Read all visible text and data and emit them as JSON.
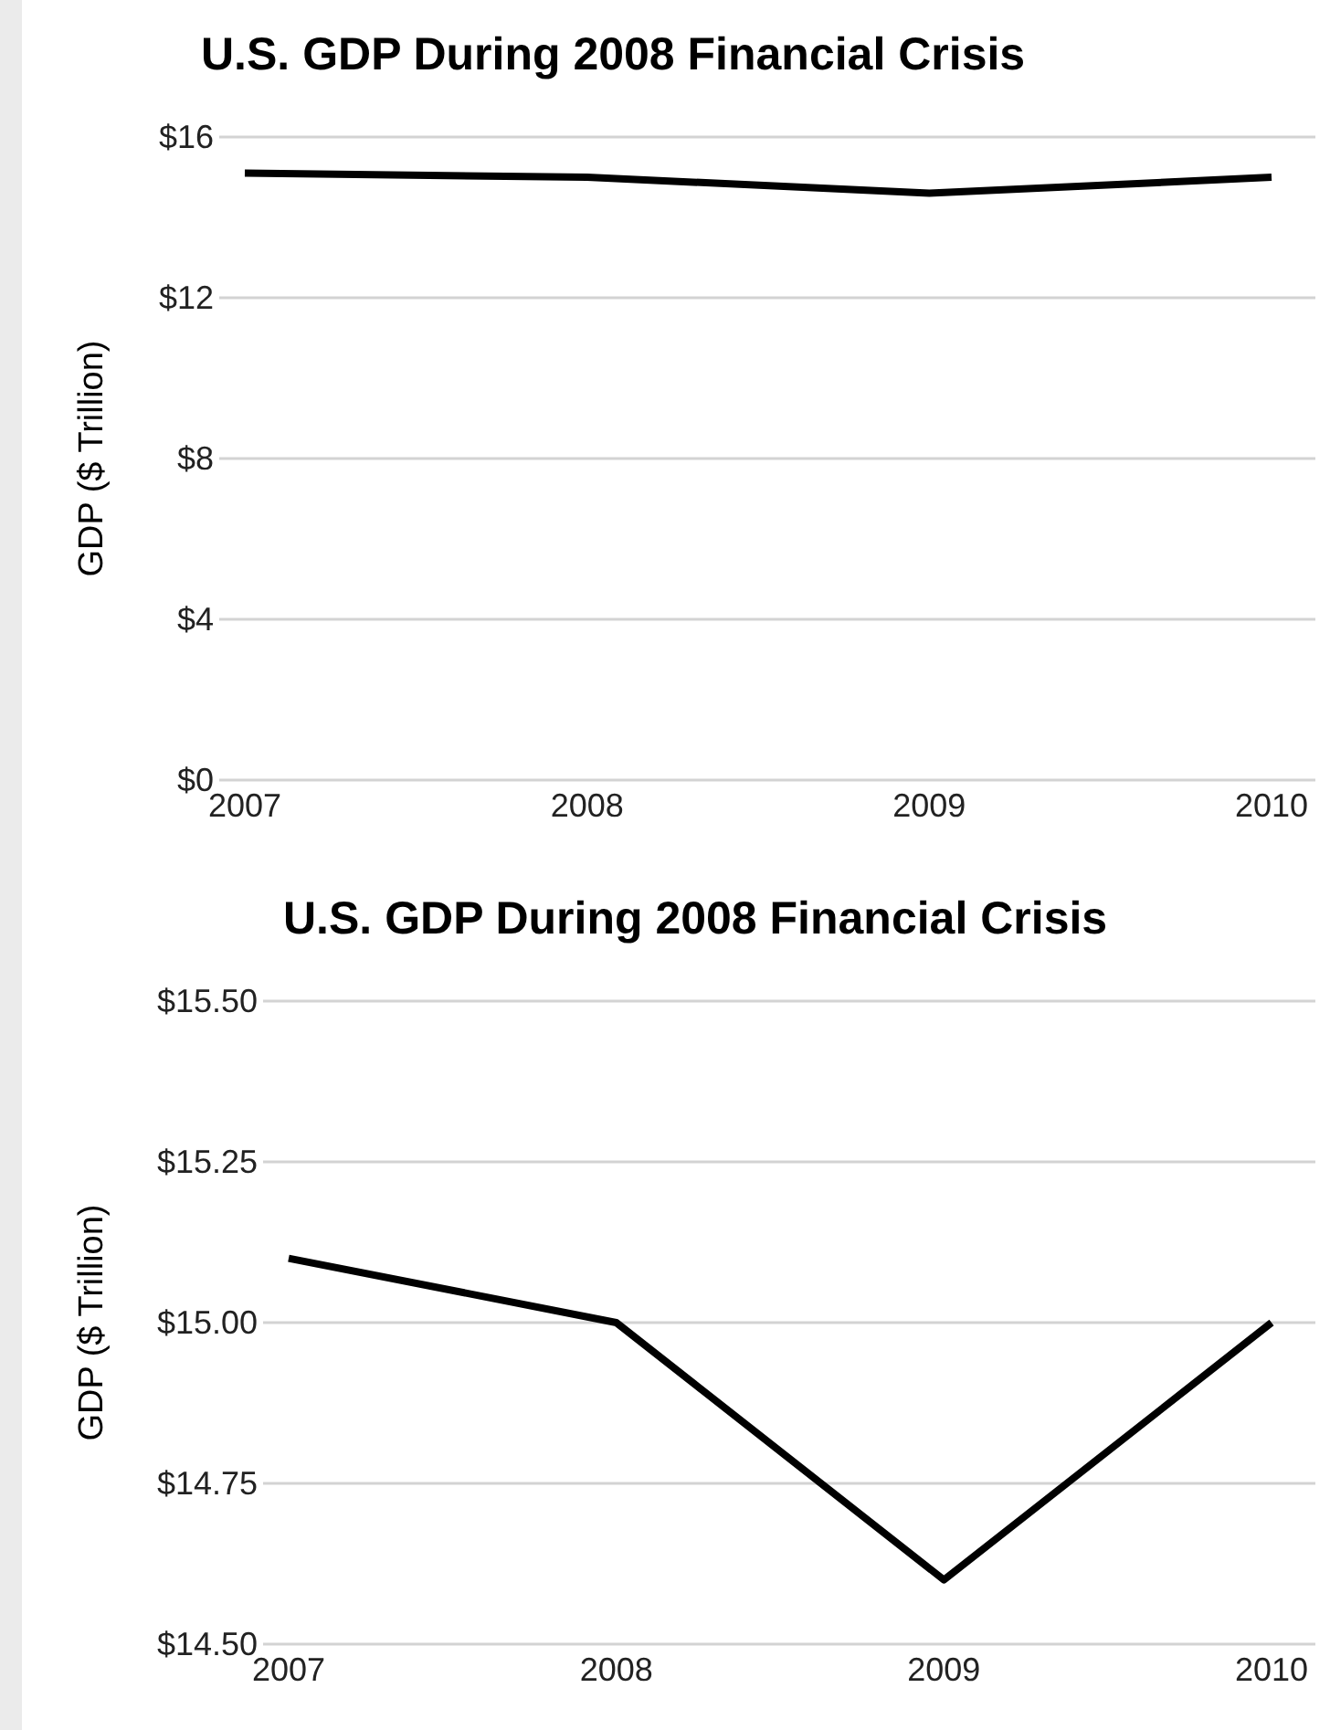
{
  "chart_data": [
    {
      "type": "line",
      "title": "U.S. GDP During 2008 Financial Crisis",
      "ylabel": "GDP ($ Trillion)",
      "categories": [
        "2007",
        "2008",
        "2009",
        "2010"
      ],
      "series": [
        {
          "color": "#000000",
          "values": [
            15.1,
            15.0,
            14.6,
            15.0
          ]
        }
      ],
      "ylim": [
        0,
        16
      ],
      "yticks": [
        {
          "value": 0,
          "label": "$0"
        },
        {
          "value": 4,
          "label": "$4"
        },
        {
          "value": 8,
          "label": "$8"
        },
        {
          "value": 12,
          "label": "$12"
        },
        {
          "value": 16,
          "label": "$16"
        }
      ],
      "grid": "y",
      "marker": "none",
      "line_style": "solid"
    },
    {
      "type": "line",
      "title": "U.S. GDP During 2008 Financial Crisis",
      "ylabel": "GDP ($ Trillion)",
      "categories": [
        "2007",
        "2008",
        "2009",
        "2010"
      ],
      "series": [
        {
          "color": "#000000",
          "values": [
            15.1,
            15.0,
            14.6,
            15.0
          ]
        }
      ],
      "ylim": [
        14.5,
        15.5
      ],
      "yticks": [
        {
          "value": 14.5,
          "label": "$14.50"
        },
        {
          "value": 14.75,
          "label": "$14.75"
        },
        {
          "value": 15,
          "label": "$15.00"
        },
        {
          "value": 15.25,
          "label": "$15.25"
        },
        {
          "value": 15.5,
          "label": "$15.50"
        }
      ],
      "grid": "y",
      "marker": "none",
      "line_style": "solid"
    }
  ]
}
